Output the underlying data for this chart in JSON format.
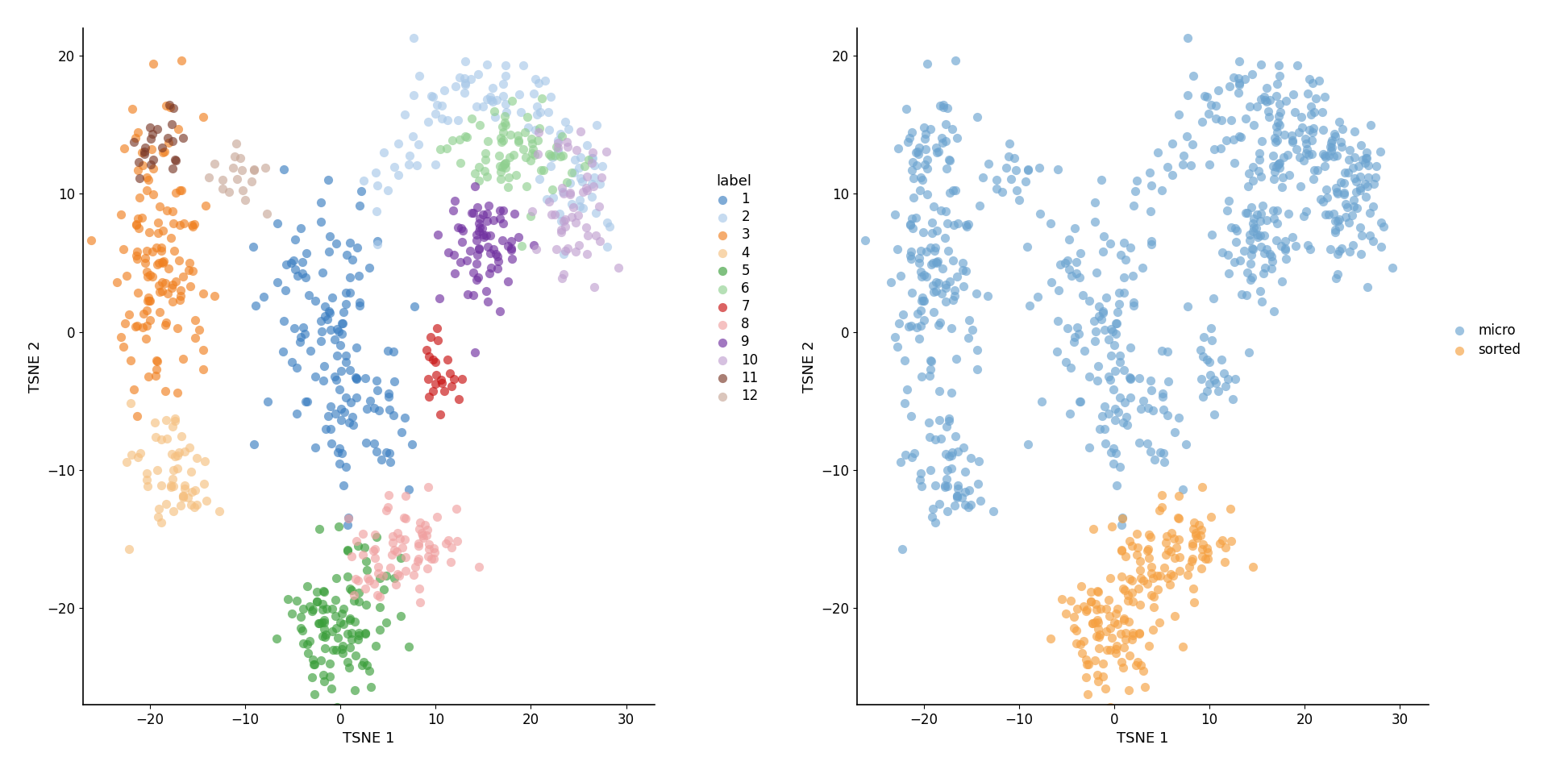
{
  "cluster_colors": {
    "1": "#3B7EC1",
    "2": "#A8C8E8",
    "3": "#F08020",
    "4": "#F5C080",
    "5": "#3A9E3A",
    "6": "#90D090",
    "7": "#C81010",
    "8": "#F0A0A0",
    "9": "#7030A0",
    "10": "#C0A0D0",
    "11": "#7B3A2A",
    "12": "#C8A898"
  },
  "protocol_colors": {
    "micro": "#6BA3D0",
    "sorted": "#F5A040"
  },
  "xlabel": "TSNE 1",
  "ylabel": "TSNE 2",
  "legend_title_left": "label",
  "xlim": [
    -27,
    33
  ],
  "ylim": [
    -27,
    22
  ],
  "xticks": [
    -20,
    -10,
    0,
    10,
    20,
    30
  ],
  "yticks": [
    -20,
    -10,
    0,
    10,
    20
  ],
  "marker_size": 65,
  "alpha": 0.65,
  "background_color": "#ffffff",
  "font_size": 12,
  "axis_label_font_size": 13
}
